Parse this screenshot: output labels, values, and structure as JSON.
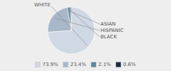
{
  "chart_data": {
    "type": "pie",
    "categories": [
      "WHITE",
      "HISPANIC",
      "ASIAN",
      "BLACK"
    ],
    "values": [
      73.9,
      23.4,
      2.1,
      0.6
    ],
    "value_labels": [
      "73.9%",
      "23.4%",
      "2.1%",
      "0.6%"
    ],
    "colors": [
      "#d0d8e4",
      "#a8b8c8",
      "#6088a0",
      "#1a2a40"
    ],
    "legend": "bottom"
  }
}
